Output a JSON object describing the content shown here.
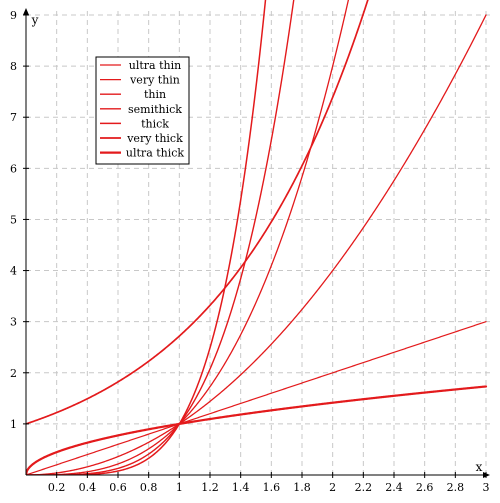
{
  "chart_data": {
    "type": "line",
    "title": "",
    "xlabel": "x",
    "ylabel": "y",
    "xlim": [
      0,
      3
    ],
    "ylim": [
      0,
      9
    ],
    "grid": true,
    "legend_position": "upper-left",
    "x_ticks": [
      "0.2",
      "0.4",
      "0.6",
      "0.8",
      "1",
      "1.2",
      "1.4",
      "1.6",
      "1.8",
      "2",
      "2.2",
      "2.4",
      "2.6",
      "2.8",
      "3"
    ],
    "y_ticks": [
      "1",
      "2",
      "3",
      "4",
      "5",
      "6",
      "7",
      "8",
      "9"
    ],
    "line_color": "#e31a1c",
    "series": [
      {
        "name": "ultra thin",
        "function": "x^1",
        "x": [
          0,
          0.5,
          1,
          1.5,
          2,
          2.5,
          3
        ],
        "values": [
          0,
          0.5,
          1,
          1.5,
          2,
          2.5,
          3
        ]
      },
      {
        "name": "very thin",
        "function": "x^2",
        "x": [
          0,
          0.5,
          1,
          1.5,
          2,
          2.5,
          3
        ],
        "values": [
          0,
          0.25,
          1,
          2.25,
          4,
          6.25,
          9
        ]
      },
      {
        "name": "thin",
        "function": "x^3",
        "x": [
          0,
          0.5,
          1,
          1.5,
          2,
          2.08
        ],
        "values": [
          0,
          0.125,
          1,
          3.375,
          8,
          9
        ]
      },
      {
        "name": "semithick",
        "function": "x^4",
        "x": [
          0,
          0.5,
          1,
          1.5,
          1.73
        ],
        "values": [
          0,
          0.063,
          1,
          5.06,
          9
        ]
      },
      {
        "name": "thick",
        "function": "x^5",
        "x": [
          0,
          0.5,
          1,
          1.4,
          1.55
        ],
        "values": [
          0,
          0.031,
          1,
          5.38,
          9
        ]
      },
      {
        "name": "very thick",
        "function": "e^x",
        "x": [
          0,
          0.5,
          1,
          1.5,
          2,
          2.2
        ],
        "values": [
          1,
          1.65,
          2.72,
          4.48,
          7.39,
          9
        ]
      },
      {
        "name": "ultra thick",
        "function": "x^0.5",
        "x": [
          0,
          0.5,
          1,
          1.5,
          2,
          2.5,
          3
        ],
        "values": [
          0,
          0.71,
          1,
          1.22,
          1.41,
          1.58,
          1.73
        ]
      }
    ]
  }
}
